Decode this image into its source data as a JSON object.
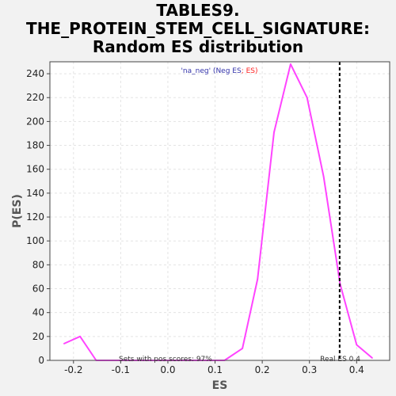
{
  "chart_data": {
    "type": "line",
    "title_lines": [
      "TABLES9.",
      "THE_PROTEIN_STEM_CELL_SIGNATURE:",
      "Random ES distribution"
    ],
    "xlabel": "ES",
    "ylabel": "P(ES)",
    "xlim": [
      -0.25,
      0.47
    ],
    "ylim": [
      0,
      250
    ],
    "x_ticks": [
      -0.2,
      -0.1,
      0.0,
      0.1,
      0.2,
      0.3,
      0.4
    ],
    "x_tick_labels": [
      "-0.2",
      "-0.1",
      "0.0",
      "0.1",
      "0.2",
      "0.3",
      "0.4"
    ],
    "y_ticks": [
      0,
      20,
      40,
      60,
      80,
      100,
      120,
      140,
      160,
      180,
      200,
      220,
      240
    ],
    "y_tick_labels": [
      "0",
      "20",
      "40",
      "60",
      "80",
      "100",
      "120",
      "140",
      "160",
      "180",
      "200",
      "220",
      "240"
    ],
    "grid": true,
    "series": [
      {
        "color": "#ff44ff",
        "x": [
          -0.22,
          -0.186,
          -0.152,
          -0.118,
          -0.084,
          -0.05,
          -0.016,
          0.018,
          0.052,
          0.086,
          0.12,
          0.158,
          0.19,
          0.225,
          0.26,
          0.295,
          0.33,
          0.365,
          0.4,
          0.433
        ],
        "y": [
          14,
          20,
          0,
          0,
          0,
          0,
          0,
          0,
          0,
          0,
          0,
          10,
          68,
          191,
          248,
          220,
          154,
          64,
          13,
          2
        ]
      }
    ],
    "real_es": 0.364,
    "real_es_color": "#000000",
    "legend": {
      "prefix": "'na_neg' (",
      "neg_label": "Neg ES",
      "sep": "; ",
      "pos_label": "ES",
      "suffix": ")",
      "prefix_color": "#3333aa",
      "neg_color": "#3333aa",
      "pos_color": "#ff2222"
    },
    "annotations": {
      "pos_scores": "Sets with pos scores: 97%",
      "real_es": "Real ES 0.4"
    },
    "colors": {
      "plot_background": "#ffffff",
      "page_background": "#f2f2f2",
      "grid": "#e4e4e4"
    }
  }
}
